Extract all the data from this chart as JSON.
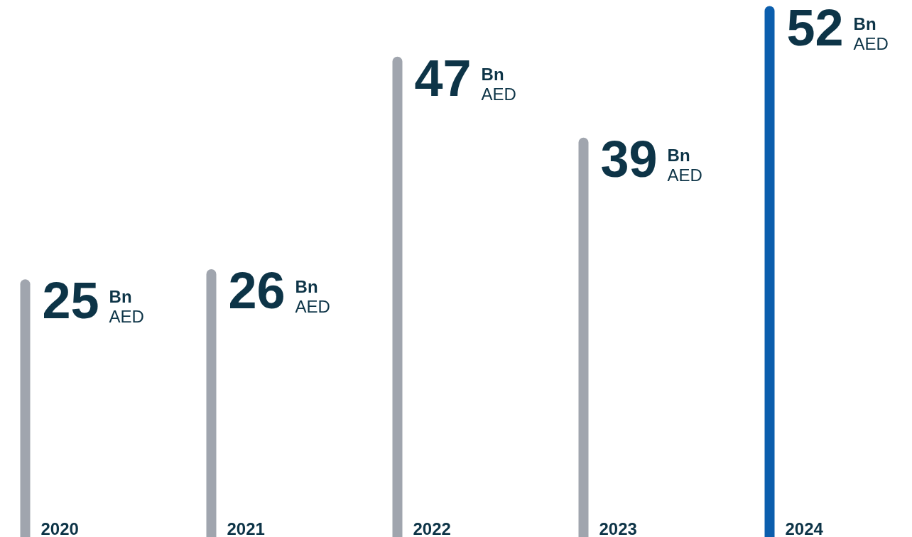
{
  "chart_data": {
    "type": "bar",
    "categories": [
      "2020",
      "2021",
      "2022",
      "2023",
      "2024"
    ],
    "values": [
      25,
      26,
      47,
      39,
      52
    ],
    "colors": [
      "#a0a5ae",
      "#a0a5ae",
      "#a0a5ae",
      "#a0a5ae",
      "#0b5ead"
    ],
    "data_labels": true,
    "annotations": [
      "Bn AED",
      "Bn AED",
      "Bn AED",
      "Bn AED",
      "Bn AED"
    ],
    "grid": false,
    "tick_labels": false
  }
}
